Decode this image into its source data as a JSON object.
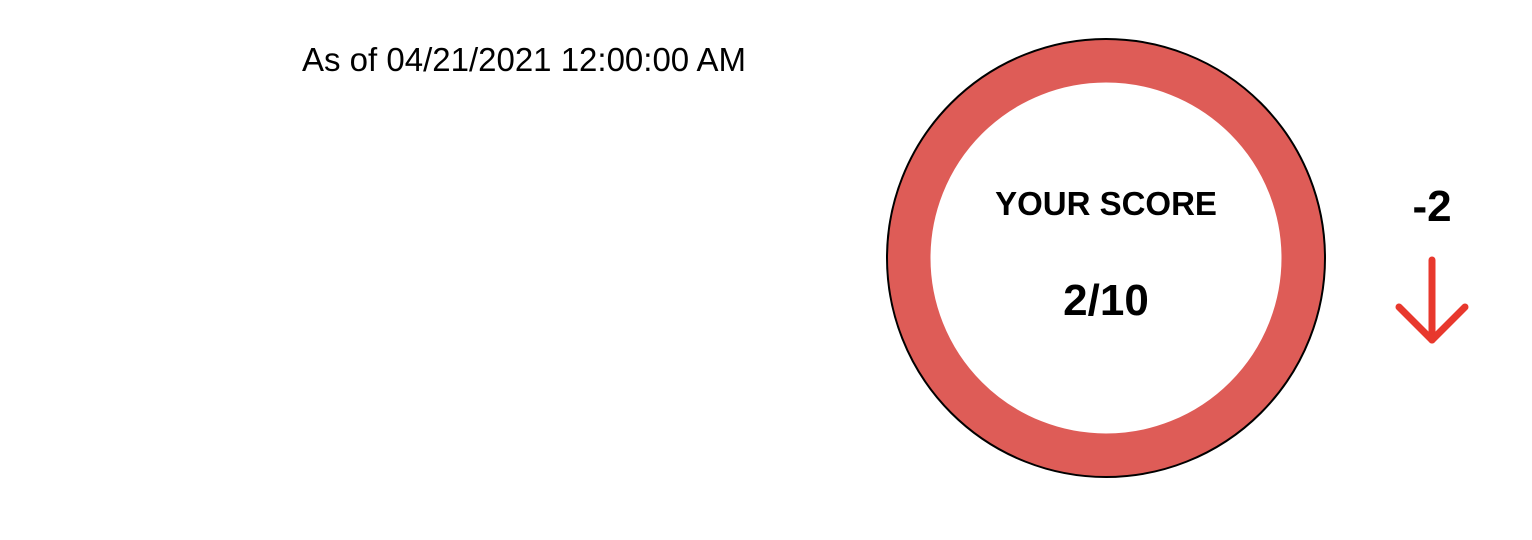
{
  "as_of": "As of 04/21/2021 12:00:00 AM",
  "score": {
    "label": "YOUR SCORE",
    "value_text": "2/10",
    "value": 2,
    "max": 10,
    "ring_color": "#de5c57"
  },
  "change": {
    "text": "-2",
    "direction": "down",
    "icon": "arrow-down-icon",
    "color": "#e8382d"
  }
}
